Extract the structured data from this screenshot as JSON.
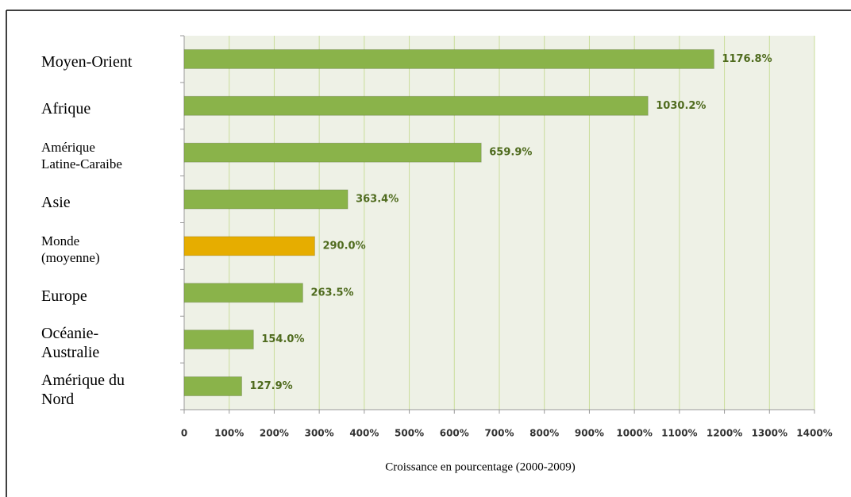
{
  "chart_data": {
    "type": "barh",
    "categories": [
      "Moyen-Orient",
      "Afrique",
      "Amérique\nLatine-Caraibe",
      "Asie",
      "Monde\n(moyenne)",
      "Europe",
      "Océanie-\nAustralie",
      "Amérique du\nNord"
    ],
    "values": [
      1176.8,
      1030.2,
      659.9,
      363.4,
      290.0,
      263.5,
      154.0,
      127.9
    ],
    "value_labels": [
      "1176.8%",
      "1030.2%",
      "659.9%",
      "363.4%",
      "290.0%",
      "263.5%",
      "154.0%",
      "127.9%"
    ],
    "colors": [
      "#8ab34a",
      "#8ab34a",
      "#8ab34a",
      "#8ab34a",
      "#e6ad00",
      "#8ab34a",
      "#8ab34a",
      "#8ab34a"
    ],
    "x_label": "Croissance en pourcentage (2000-2009)",
    "xlim": [
      0,
      1400
    ],
    "xticks": [
      0,
      {
        "value": 100,
        "label": "100%"
      },
      {
        "value": 200,
        "label": "200%"
      },
      {
        "value": 300,
        "label": "300%"
      },
      {
        "value": 400,
        "label": "400%"
      },
      {
        "value": 500,
        "label": "500%"
      },
      {
        "value": 600,
        "label": "600%"
      },
      {
        "value": 700,
        "label": "700%"
      },
      {
        "value": 800,
        "label": "800%"
      },
      {
        "value": 900,
        "label": "900%"
      },
      {
        "value": 1000,
        "label": "1000%"
      },
      {
        "value": 1100,
        "label": "1100%"
      },
      {
        "value": 1200,
        "label": "1200%"
      },
      {
        "value": 1300,
        "label": "1300%"
      },
      {
        "value": 1400,
        "label": "1400%"
      }
    ],
    "grid": true
  }
}
